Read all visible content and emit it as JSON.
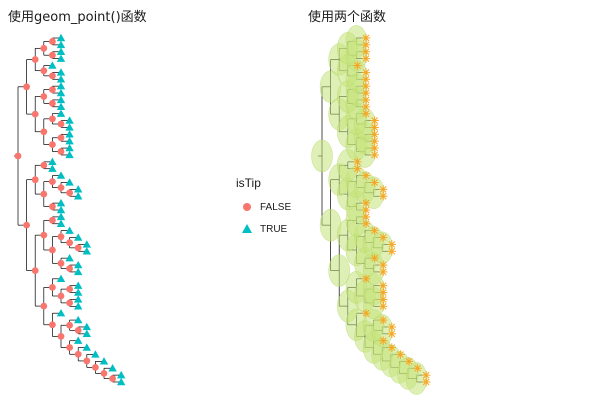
{
  "titles": {
    "left": "使用geom_point()函数",
    "right": "使用两个函数"
  },
  "legend": {
    "title": "isTip",
    "items": [
      {
        "label": "FALSE",
        "color": "#F8766D",
        "shape": "circle"
      },
      {
        "label": "TRUE",
        "color": "#00BFC4",
        "shape": "triangle"
      }
    ]
  },
  "styles": {
    "branch_color": "#000000",
    "circle_fill": "#C5E37A",
    "star_color": "#F5A623"
  }
}
